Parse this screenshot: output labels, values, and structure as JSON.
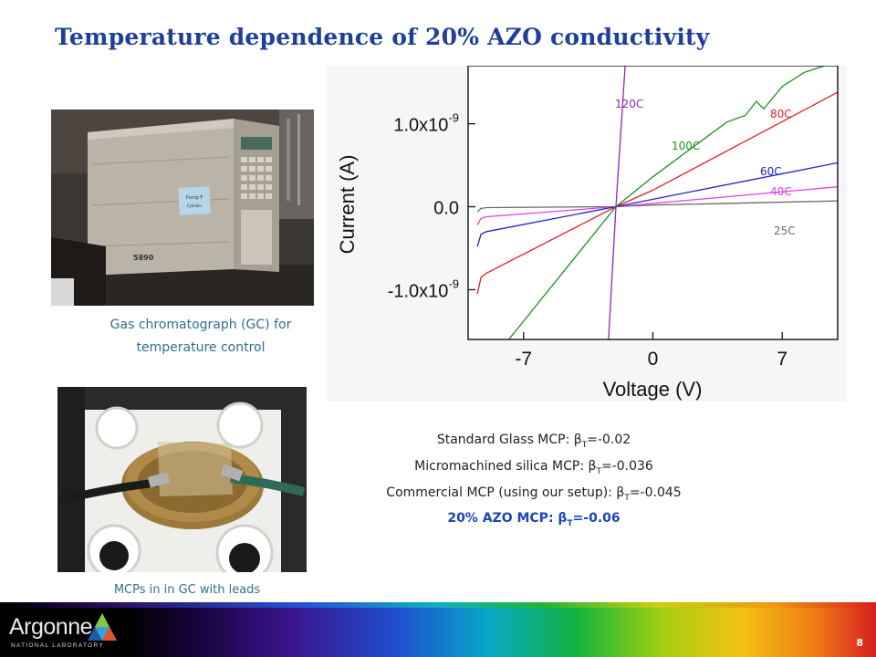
{
  "slide": {
    "title": "Temperature dependence of 20% AZO conductivity",
    "page_number": "8"
  },
  "photos": {
    "gc_caption_line1": "Gas chromatograph (GC) for",
    "gc_caption_line2": "temperature control",
    "gc_label": "5890",
    "mcp_caption": "MCPs in in GC with leads"
  },
  "results": [
    {
      "prefix": "Standard Glass MCP: β",
      "sub": "T",
      "value": "=-0.02"
    },
    {
      "prefix": "Micromachined silica MCP: β",
      "sub": "T",
      "value": "=-0.036"
    },
    {
      "prefix": "Commercial MCP (using our setup): β",
      "sub": "T",
      "value": "=-0.045"
    },
    {
      "prefix": "20% AZO MCP: β",
      "sub": "T",
      "value": "=-0.06"
    }
  ],
  "footer": {
    "logo": "Argonne",
    "logo_sub": "NATIONAL LABORATORY"
  },
  "colors": {
    "title": "#1f3f9a",
    "caption": "#2e6f8f",
    "highlight": "#1d46b4"
  },
  "chart_data": {
    "type": "line",
    "xlabel": "Voltage (V)",
    "ylabel": "Current (A)",
    "xlim": [
      -10,
      10
    ],
    "ylim": [
      -1.6e-09,
      1.7e-09
    ],
    "xticks": [
      {
        "v": -7,
        "label": "-7"
      },
      {
        "v": 0,
        "label": "0"
      },
      {
        "v": 7,
        "label": "7"
      }
    ],
    "yticks": [
      {
        "v": 1e-09,
        "label": "1.0x10",
        "exp": "-9"
      },
      {
        "v": 0,
        "label": "0.0",
        "exp": ""
      },
      {
        "v": -1e-09,
        "label": "-1.0x10",
        "exp": "-9"
      }
    ],
    "series": [
      {
        "name": "25C",
        "color": "#6b6b6b",
        "points": [
          [
            -9.5,
            -6e-11
          ],
          [
            -9.3,
            -2e-11
          ],
          [
            -9,
            -1e-11
          ],
          [
            -2,
            0.0
          ],
          [
            0,
            2e-11
          ],
          [
            10,
            7e-11
          ]
        ]
      },
      {
        "name": "40C",
        "color": "#e040e0",
        "points": [
          [
            -9.5,
            -2.2e-10
          ],
          [
            -9.3,
            -1.4e-10
          ],
          [
            -9,
            -1.2e-10
          ],
          [
            -2,
            0.0
          ],
          [
            0,
            4e-11
          ],
          [
            10,
            2.4e-10
          ]
        ]
      },
      {
        "name": "60C",
        "color": "#2222cc",
        "points": [
          [
            -9.5,
            -4.8e-10
          ],
          [
            -9.3,
            -3.3e-10
          ],
          [
            -9,
            -3e-10
          ],
          [
            -2,
            0.0
          ],
          [
            0,
            9e-11
          ],
          [
            10,
            5.3e-10
          ]
        ]
      },
      {
        "name": "80C",
        "color": "#e02020",
        "points": [
          [
            -9.5,
            -1.05e-09
          ],
          [
            -9.3,
            -8.5e-10
          ],
          [
            -9,
            -8e-10
          ],
          [
            -2,
            0.0
          ],
          [
            0,
            2e-10
          ],
          [
            10,
            1.38e-09
          ]
        ]
      },
      {
        "name": "100C",
        "color": "#1f8f1f",
        "points": [
          [
            -7.8,
            -1.6e-09
          ],
          [
            -2,
            0.0
          ],
          [
            0,
            3.6e-10
          ],
          [
            4,
            1.02e-09
          ],
          [
            5,
            1.1e-09
          ],
          [
            5.6,
            1.27e-09
          ],
          [
            6,
            1.18e-09
          ],
          [
            7,
            1.45e-09
          ],
          [
            8.2,
            1.62e-09
          ],
          [
            9.3,
            1.7e-09
          ]
        ]
      },
      {
        "name": "120C",
        "color": "#8a2ab8",
        "points": [
          [
            -2.4,
            -1.6e-09
          ],
          [
            -2,
            0.0
          ],
          [
            -1.5,
            1.7e-09
          ]
        ]
      }
    ]
  }
}
